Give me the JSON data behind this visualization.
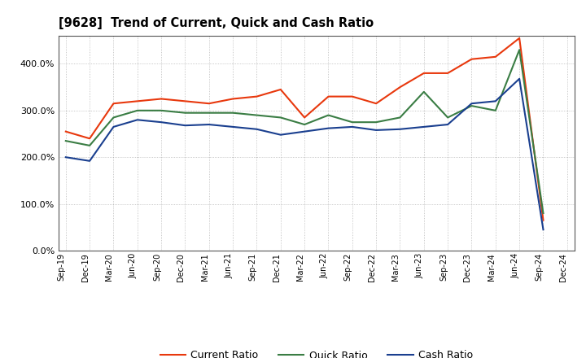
{
  "title": "[9628]  Trend of Current, Quick and Cash Ratio",
  "labels": [
    "Sep-19",
    "Dec-19",
    "Mar-20",
    "Jun-20",
    "Sep-20",
    "Dec-20",
    "Mar-21",
    "Jun-21",
    "Sep-21",
    "Dec-21",
    "Mar-22",
    "Jun-22",
    "Sep-22",
    "Dec-22",
    "Mar-23",
    "Jun-23",
    "Sep-23",
    "Dec-23",
    "Mar-24",
    "Jun-24",
    "Sep-24",
    "Dec-24"
  ],
  "current_ratio": [
    255,
    240,
    315,
    320,
    325,
    320,
    315,
    325,
    330,
    345,
    285,
    330,
    330,
    315,
    350,
    380,
    380,
    410,
    415,
    455,
    65,
    null
  ],
  "quick_ratio": [
    235,
    225,
    285,
    300,
    300,
    295,
    295,
    295,
    290,
    285,
    270,
    290,
    275,
    275,
    285,
    340,
    285,
    310,
    300,
    430,
    80,
    null
  ],
  "cash_ratio": [
    200,
    192,
    265,
    280,
    275,
    268,
    270,
    265,
    260,
    248,
    255,
    262,
    265,
    258,
    260,
    265,
    270,
    315,
    320,
    368,
    45,
    null
  ],
  "current_color": "#e8380d",
  "quick_color": "#3a7d44",
  "cash_color": "#1a3f8f",
  "bg_color": "#ffffff",
  "plot_bg_color": "#ffffff",
  "ylim": [
    0,
    460
  ],
  "yticks": [
    0,
    100,
    200,
    300,
    400
  ],
  "legend_labels": [
    "Current Ratio",
    "Quick Ratio",
    "Cash Ratio"
  ]
}
